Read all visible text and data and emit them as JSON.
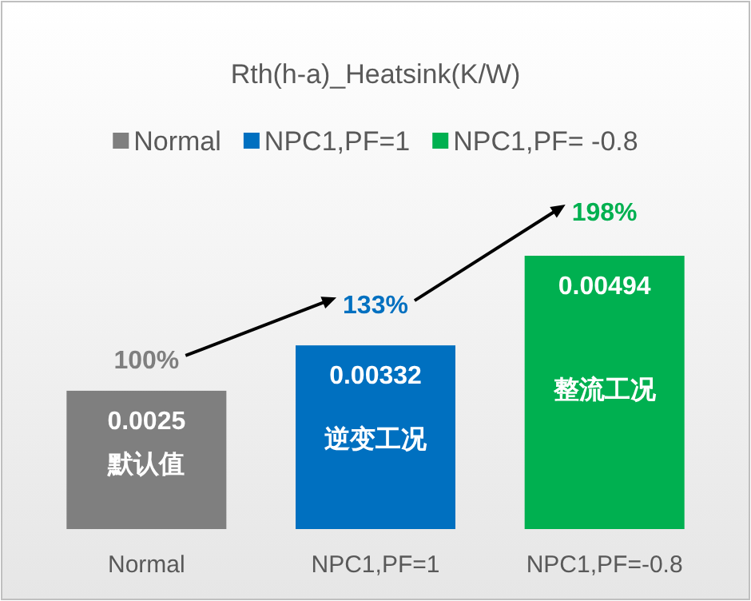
{
  "chart_data": {
    "type": "bar",
    "title": "Rth(h-a)_Heatsink(K/W)",
    "categories": [
      "Normal",
      "NPC1,PF=1",
      "NPC1,PF=-0.8"
    ],
    "series": [
      {
        "name": "Normal",
        "color": "#7f7f7f",
        "values": [
          0.0025,
          null,
          null
        ]
      },
      {
        "name": "NPC1,PF=1",
        "color": "#0070c0",
        "values": [
          null,
          0.00332,
          null
        ]
      },
      {
        "name": "NPC1,PF= -0.8",
        "color": "#00b050",
        "values": [
          null,
          null,
          0.00494
        ]
      }
    ],
    "data_labels": true,
    "legend": "top",
    "grid": false,
    "annotations": [
      "100%",
      "133%",
      "198%",
      "默认值",
      "逆变工况",
      "整流工况"
    ]
  }
}
